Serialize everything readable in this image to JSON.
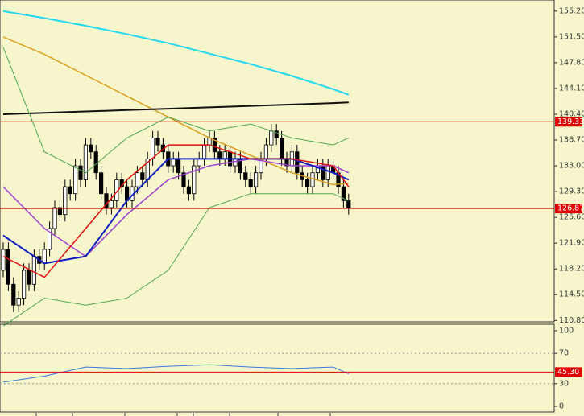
{
  "chart_data": [
    {
      "type": "candlestick",
      "ylim": [
        110.6,
        156.8
      ],
      "yticks": [
        {
          "value": 155.2,
          "label": "155.20"
        },
        {
          "value": 151.5,
          "label": "151.50"
        },
        {
          "value": 147.8,
          "label": "147.80"
        },
        {
          "value": 144.1,
          "label": "144.10"
        },
        {
          "value": 140.4,
          "label": "140.40"
        },
        {
          "value": 136.7,
          "label": "136.70"
        },
        {
          "value": 133,
          "label": "133.00"
        },
        {
          "value": 129.3,
          "label": "129.30"
        },
        {
          "value": 125.6,
          "label": "125.60"
        },
        {
          "value": 121.9,
          "label": "121.90"
        },
        {
          "value": 118.2,
          "label": "118.20"
        },
        {
          "value": 114.5,
          "label": "114.50"
        },
        {
          "value": 110.8,
          "label": "110.80"
        }
      ],
      "hlines": [
        {
          "value": 139.33,
          "label": "139.33",
          "color": "#e00000"
        },
        {
          "value": 126.87,
          "label": "126.87",
          "color": "#e00000"
        }
      ],
      "up_color": "#ffffff",
      "down_color": "#000000",
      "open": [
        118,
        121,
        116,
        113,
        114,
        118,
        116,
        120,
        119,
        121,
        124,
        127,
        126,
        130,
        129,
        133,
        131,
        136,
        135,
        132,
        129,
        127,
        128,
        131,
        130,
        128,
        130,
        132,
        131,
        134,
        137,
        136,
        135,
        133,
        134,
        132,
        130,
        129,
        133,
        134,
        136,
        137,
        135,
        134,
        135,
        133,
        134,
        132,
        131,
        130,
        132,
        134,
        136,
        138,
        137,
        134,
        133,
        135,
        132,
        131,
        130,
        132,
        133,
        131,
        133,
        132,
        130,
        128
      ],
      "high": [
        122,
        122,
        117,
        115,
        119,
        119,
        121,
        121,
        122,
        125,
        128,
        128,
        131,
        131,
        134,
        134,
        137,
        137,
        136,
        133,
        130,
        129,
        132,
        132,
        131,
        131,
        133,
        133,
        135,
        138,
        138,
        137,
        136,
        135,
        135,
        133,
        131,
        134,
        135,
        137,
        138,
        138,
        136,
        136,
        136,
        135,
        135,
        133,
        132,
        133,
        135,
        137,
        139,
        139,
        138,
        135,
        136,
        136,
        133,
        132,
        133,
        134,
        134,
        134,
        134,
        133,
        131,
        129
      ],
      "low": [
        117,
        115,
        112,
        112,
        113,
        115,
        115,
        118,
        118,
        120,
        123,
        125,
        125,
        128,
        128,
        130,
        130,
        134,
        131,
        128,
        126,
        126,
        127,
        129,
        127,
        127,
        129,
        130,
        130,
        133,
        135,
        134,
        132,
        132,
        131,
        129,
        128,
        128,
        132,
        133,
        135,
        134,
        133,
        133,
        132,
        132,
        131,
        130,
        129,
        129,
        131,
        133,
        135,
        136,
        133,
        132,
        132,
        131,
        130,
        129,
        129,
        131,
        130,
        130,
        131,
        129,
        127,
        126
      ],
      "close": [
        121,
        116,
        113,
        114,
        118,
        116,
        120,
        119,
        121,
        124,
        127,
        126,
        130,
        129,
        133,
        131,
        136,
        135,
        132,
        129,
        127,
        128,
        131,
        130,
        128,
        130,
        132,
        131,
        134,
        137,
        136,
        135,
        133,
        134,
        132,
        130,
        129,
        133,
        134,
        136,
        137,
        135,
        134,
        135,
        133,
        134,
        132,
        131,
        130,
        132,
        134,
        136,
        138,
        137,
        134,
        133,
        135,
        132,
        131,
        130,
        132,
        133,
        131,
        133,
        132,
        130,
        128,
        127
      ],
      "series": [
        {
          "color": "#22d8f0",
          "width": 2,
          "x": [
            0,
            8,
            16,
            24,
            32,
            40,
            48,
            56,
            64,
            67
          ],
          "values": [
            155.2,
            154.2,
            153.1,
            151.9,
            150.6,
            149.1,
            147.6,
            145.9,
            144.0,
            143.2
          ]
        },
        {
          "color": "#d9a020",
          "width": 1.5,
          "x": [
            0,
            8,
            16,
            24,
            32,
            40,
            48,
            56,
            64,
            67
          ],
          "values": [
            151.5,
            149,
            146,
            143,
            140,
            137,
            134.5,
            132,
            130.3,
            130.5
          ]
        },
        {
          "color": "#111111",
          "width": 2,
          "x": [
            0,
            8,
            16,
            24,
            32,
            40,
            48,
            56,
            64,
            67
          ],
          "values": [
            140.4,
            140.6,
            140.8,
            141,
            141.2,
            141.4,
            141.6,
            141.8,
            142,
            142.1
          ]
        },
        {
          "color": "#50a850",
          "width": 1,
          "x": [
            0,
            8,
            16,
            24,
            32,
            40,
            48,
            56,
            64,
            67
          ],
          "values": [
            150,
            135,
            132,
            137,
            140,
            138,
            139,
            137,
            136,
            137
          ]
        },
        {
          "color": "#50a850",
          "width": 1,
          "x": [
            0,
            8,
            16,
            24,
            32,
            40,
            48,
            56,
            64,
            67
          ],
          "values": [
            110,
            114,
            113,
            114,
            118,
            127,
            129,
            129,
            129,
            128
          ]
        },
        {
          "color": "#a040d0",
          "width": 1.5,
          "x": [
            0,
            8,
            16,
            24,
            32,
            40,
            48,
            56,
            64,
            67
          ],
          "values": [
            130,
            124,
            120,
            126,
            131,
            133,
            134,
            133,
            133,
            132
          ]
        },
        {
          "color": "#1020c0",
          "width": 2,
          "x": [
            0,
            8,
            16,
            24,
            32,
            40,
            48,
            56,
            64,
            67
          ],
          "values": [
            123,
            119,
            120,
            128,
            134,
            134,
            134,
            134,
            132,
            131
          ]
        },
        {
          "color": "#e01010",
          "width": 1.5,
          "x": [
            0,
            8,
            16,
            24,
            32,
            40,
            48,
            56,
            64,
            67
          ],
          "values": [
            120,
            117,
            124,
            131,
            136,
            136,
            134,
            134,
            133,
            130
          ]
        }
      ]
    },
    {
      "type": "line",
      "ylim": [
        -7.4,
        108.4
      ],
      "yticks": [
        100,
        70,
        30,
        0
      ],
      "dashed": [
        70,
        30
      ],
      "hlines": [
        {
          "value": 45.3,
          "label": "45.30",
          "color": "#e00000"
        }
      ],
      "series": [
        {
          "color": "#3a7ae0",
          "width": 1,
          "x": [
            0,
            8,
            16,
            24,
            32,
            40,
            48,
            56,
            64,
            67
          ],
          "values": [
            32,
            40,
            52,
            50,
            53,
            55,
            52,
            50,
            52,
            43
          ]
        }
      ]
    }
  ]
}
